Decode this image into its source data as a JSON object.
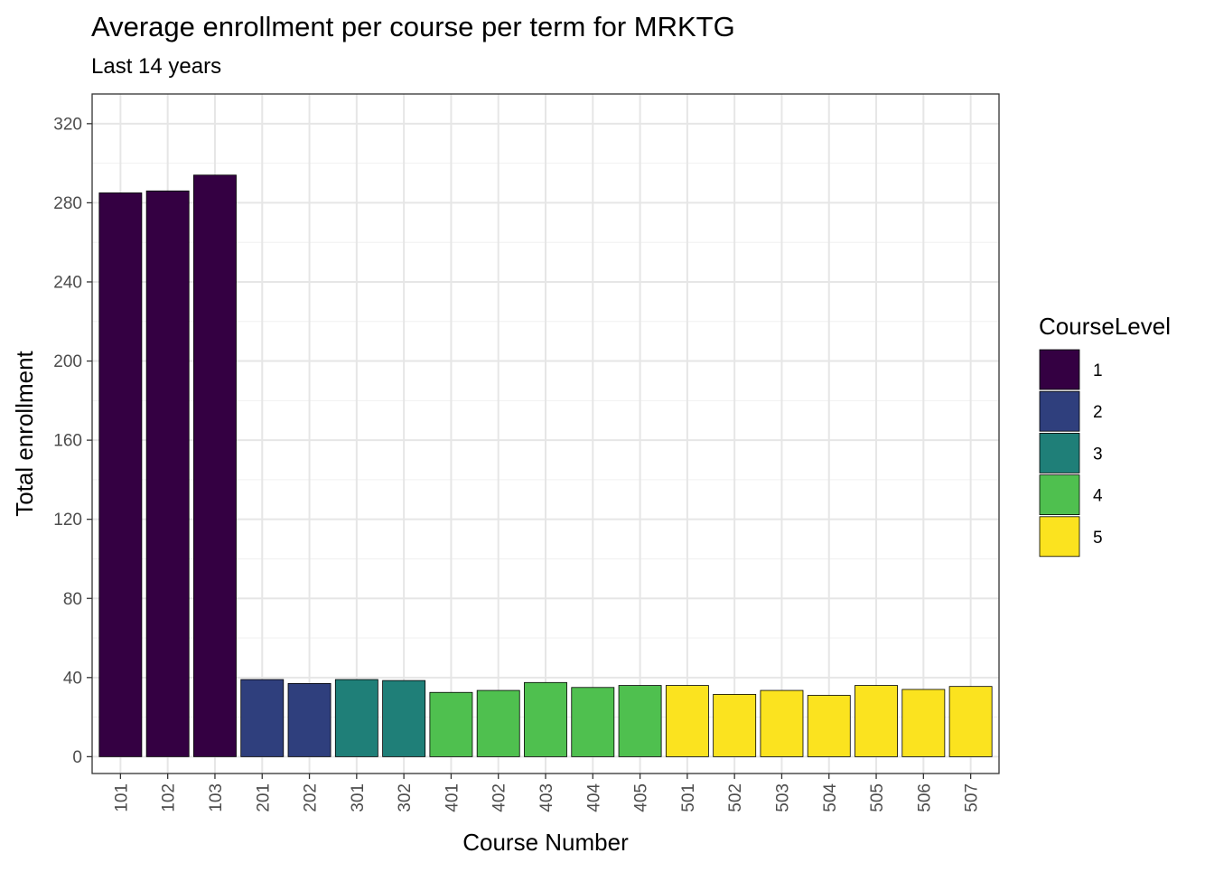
{
  "chart_data": {
    "type": "bar",
    "title": "Average enrollment per course per term for MRKTG",
    "subtitle": "Last 14 years",
    "xlabel": "Course Number",
    "ylabel": "Total enrollment",
    "ylim": [
      -8.5,
      335
    ],
    "yticks": [
      "0",
      "40",
      "80",
      "120",
      "160",
      "200",
      "240",
      "280",
      "320"
    ],
    "ytick_values": [
      0,
      40,
      80,
      120,
      160,
      200,
      240,
      280,
      320
    ],
    "grid": true,
    "legend_position": "right",
    "categories": [
      "101",
      "102",
      "103",
      "201",
      "202",
      "301",
      "302",
      "401",
      "402",
      "403",
      "404",
      "405",
      "501",
      "502",
      "503",
      "504",
      "505",
      "506",
      "507"
    ],
    "values": [
      285,
      286,
      294,
      39,
      37,
      39,
      38.5,
      32.5,
      33.5,
      37.5,
      35,
      36,
      36,
      31.5,
      33.5,
      31,
      36,
      34,
      35.5
    ],
    "levels": [
      "1",
      "1",
      "1",
      "2",
      "2",
      "3",
      "3",
      "4",
      "4",
      "4",
      "4",
      "4",
      "5",
      "5",
      "5",
      "5",
      "5",
      "5",
      "5"
    ],
    "legend": {
      "title": "CourseLevel",
      "items": [
        {
          "label": "1",
          "color": "#340042"
        },
        {
          "label": "2",
          "color": "#2f3f7d"
        },
        {
          "label": "3",
          "color": "#1f7f78"
        },
        {
          "label": "4",
          "color": "#4fc04f"
        },
        {
          "label": "5",
          "color": "#fbe31f"
        }
      ]
    }
  }
}
